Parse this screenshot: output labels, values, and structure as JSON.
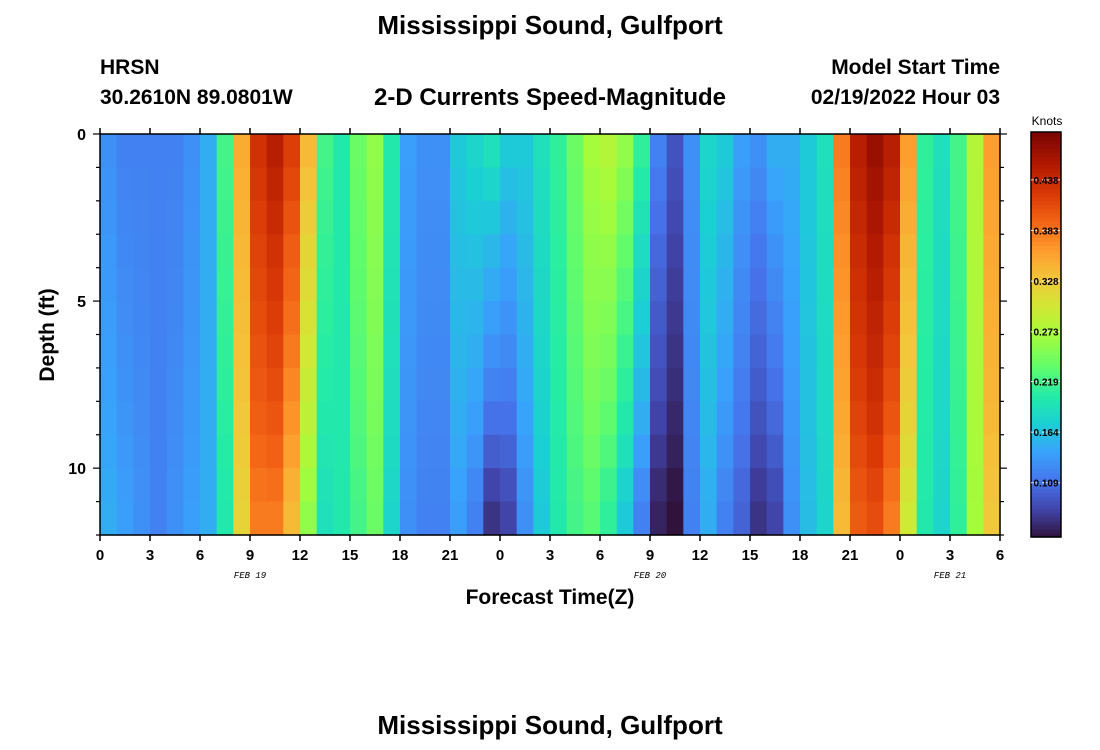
{
  "title": "Mississippi Sound, Gulfport",
  "station": {
    "code": "HRSN",
    "coords": "30.2610N  89.0801W"
  },
  "subtitle": "2-D Currents Speed-Magnitude",
  "model_start": {
    "label": "Model Start Time",
    "value": "02/19/2022 Hour 03"
  },
  "second_title": "Mississippi Sound, Gulfport",
  "chart_data": {
    "type": "heatmap",
    "xlabel": "Forecast Time(Z)",
    "ylabel": "Depth (ft)",
    "x_tick_labels": [
      "0",
      "3",
      "6",
      "9",
      "12",
      "15",
      "18",
      "21",
      "0",
      "3",
      "6",
      "9",
      "12",
      "15",
      "18",
      "21",
      "0",
      "3",
      "6"
    ],
    "date_labels": [
      {
        "label": "FEB 19",
        "at_tick": 3
      },
      {
        "label": "FEB 20",
        "at_tick": 11
      },
      {
        "label": "FEB 21",
        "at_tick": 17
      }
    ],
    "y_tick_labels": [
      {
        "value": 0,
        "label": "0"
      },
      {
        "value": 5,
        "label": "5"
      },
      {
        "value": 10,
        "label": "10"
      }
    ],
    "ylim": [
      0,
      12
    ],
    "x_range_hours": [
      0,
      54
    ],
    "colorbar": {
      "label": "Knots",
      "vmin": 0.05,
      "vmax": 0.49,
      "ticks": [
        "0.438",
        "0.383",
        "0.328",
        "0.273",
        "0.219",
        "0.164",
        "0.109"
      ],
      "tick_values": [
        0.438,
        0.383,
        0.328,
        0.273,
        0.219,
        0.164,
        0.109
      ]
    },
    "depths_ft": [
      0.5,
      1.5,
      2.5,
      3.5,
      4.5,
      5.5,
      6.5,
      7.5,
      8.5,
      9.5,
      10.5,
      11.5
    ],
    "time_hours": [
      0,
      1,
      2,
      3,
      4,
      5,
      6,
      7,
      8,
      9,
      10,
      11,
      12,
      13,
      14,
      15,
      16,
      17,
      18,
      19,
      20,
      21,
      22,
      23,
      24,
      25,
      26,
      27,
      28,
      29,
      30,
      31,
      32,
      33,
      34,
      35,
      36,
      37,
      38,
      39,
      40,
      41,
      42,
      43,
      44,
      45,
      46,
      47,
      48,
      49,
      50,
      51,
      52,
      53
    ],
    "surface_speed_knots": [
      0.13,
      0.12,
      0.12,
      0.12,
      0.12,
      0.13,
      0.15,
      0.22,
      0.35,
      0.43,
      0.45,
      0.42,
      0.34,
      0.22,
      0.2,
      0.24,
      0.26,
      0.2,
      0.14,
      0.13,
      0.13,
      0.17,
      0.18,
      0.19,
      0.17,
      0.17,
      0.19,
      0.21,
      0.24,
      0.27,
      0.28,
      0.26,
      0.21,
      0.12,
      0.09,
      0.13,
      0.18,
      0.17,
      0.14,
      0.13,
      0.15,
      0.15,
      0.17,
      0.19,
      0.38,
      0.45,
      0.47,
      0.45,
      0.36,
      0.21,
      0.19,
      0.22,
      0.28,
      0.36
    ],
    "bottom_speed_knots": [
      0.15,
      0.14,
      0.13,
      0.12,
      0.13,
      0.14,
      0.15,
      0.2,
      0.32,
      0.38,
      0.38,
      0.34,
      0.26,
      0.19,
      0.2,
      0.22,
      0.24,
      0.18,
      0.13,
      0.12,
      0.12,
      0.14,
      0.12,
      0.07,
      0.08,
      0.13,
      0.17,
      0.2,
      0.22,
      0.23,
      0.21,
      0.17,
      0.12,
      0.06,
      0.05,
      0.12,
      0.15,
      0.12,
      0.1,
      0.07,
      0.08,
      0.13,
      0.16,
      0.18,
      0.34,
      0.4,
      0.41,
      0.38,
      0.3,
      0.2,
      0.18,
      0.21,
      0.27,
      0.33
    ],
    "bottom_speed_scale_by_depth": [
      1.0,
      1.0,
      1.0,
      1.0,
      0.95,
      0.92,
      0.9,
      0.9,
      0.92,
      0.95,
      1.0,
      1.0
    ]
  }
}
